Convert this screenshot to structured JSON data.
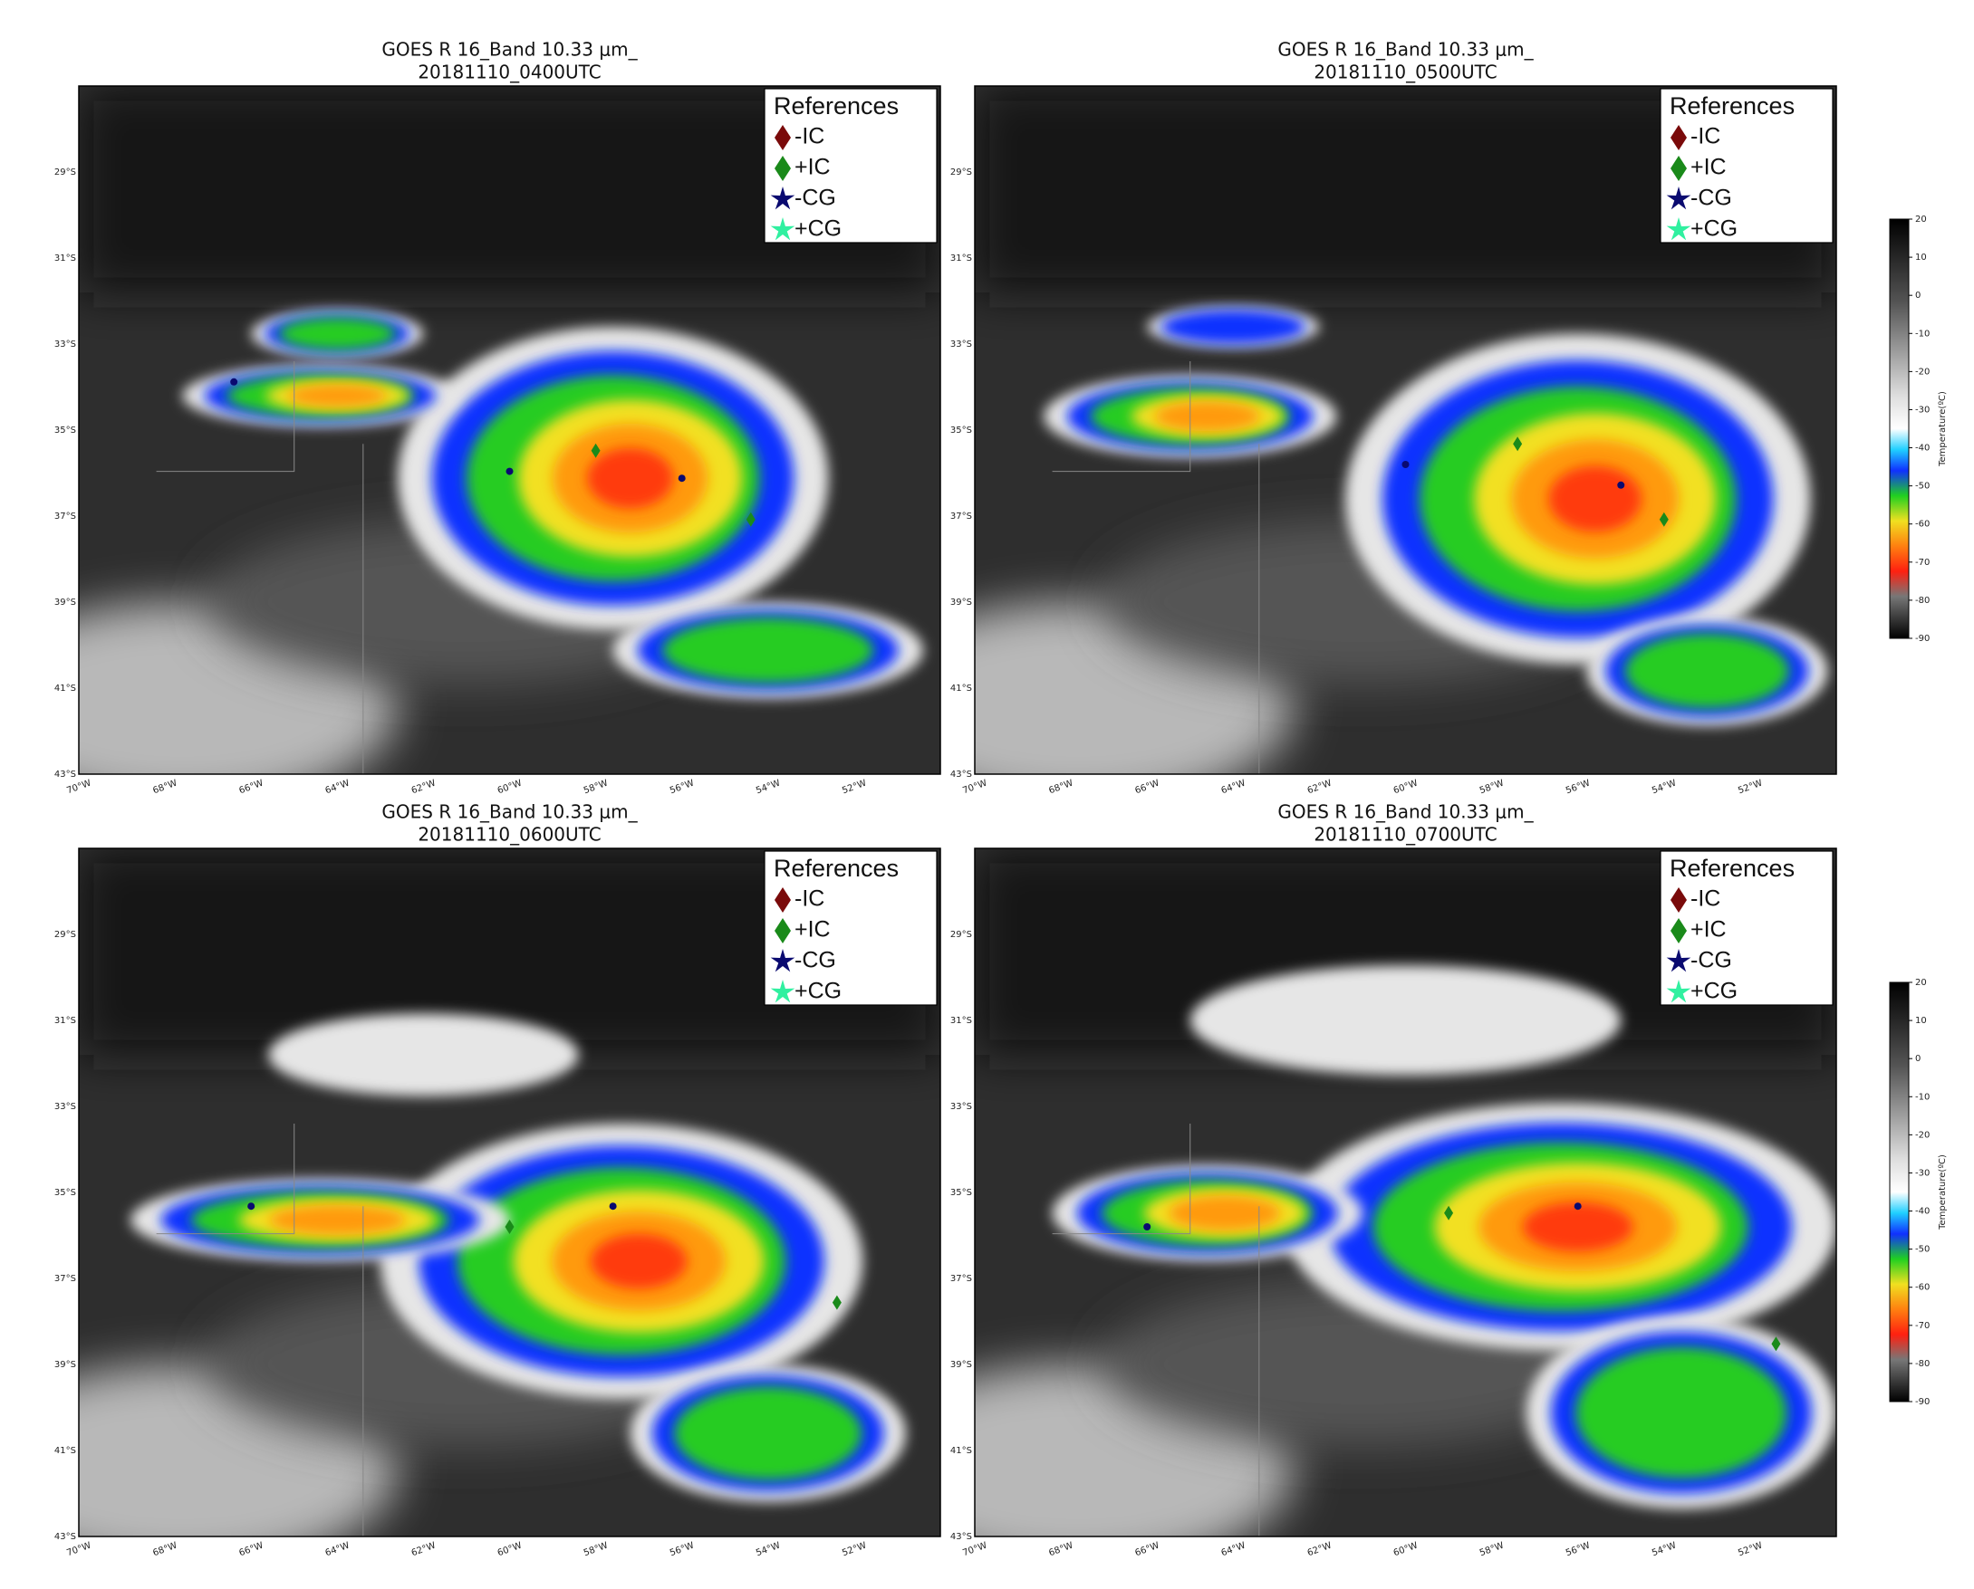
{
  "panels": [
    {
      "title": "GOES R 16_Band 10.33 μm_",
      "time": "20181110_0400UTC"
    },
    {
      "title": "GOES R 16_Band 10.33 μm_",
      "time": "20181110_0500UTC"
    },
    {
      "title": "GOES R 16_Band 10.33 μm_",
      "time": "20181110_0600UTC"
    },
    {
      "title": "GOES R 16_Band 10.33 μm_",
      "time": "20181110_0700UTC"
    }
  ],
  "legend": {
    "title": "References",
    "items": [
      "-IC",
      "+IC",
      "-CG",
      "+CG"
    ]
  },
  "lat_ticks": [
    "29°S",
    "31°S",
    "33°S",
    "35°S",
    "37°S",
    "39°S",
    "41°S",
    "43°S"
  ],
  "lon_ticks": [
    "70°W",
    "68°W",
    "66°W",
    "64°W",
    "62°W",
    "60°W",
    "58°W",
    "56°W",
    "54°W",
    "52°W"
  ],
  "colorbar": {
    "label": "Temperature(ºC)",
    "range": [
      -90,
      20
    ],
    "ticks": [
      20,
      10,
      0,
      -10,
      -20,
      -30,
      -40,
      -50,
      -60,
      -70,
      -80,
      -90
    ]
  }
}
